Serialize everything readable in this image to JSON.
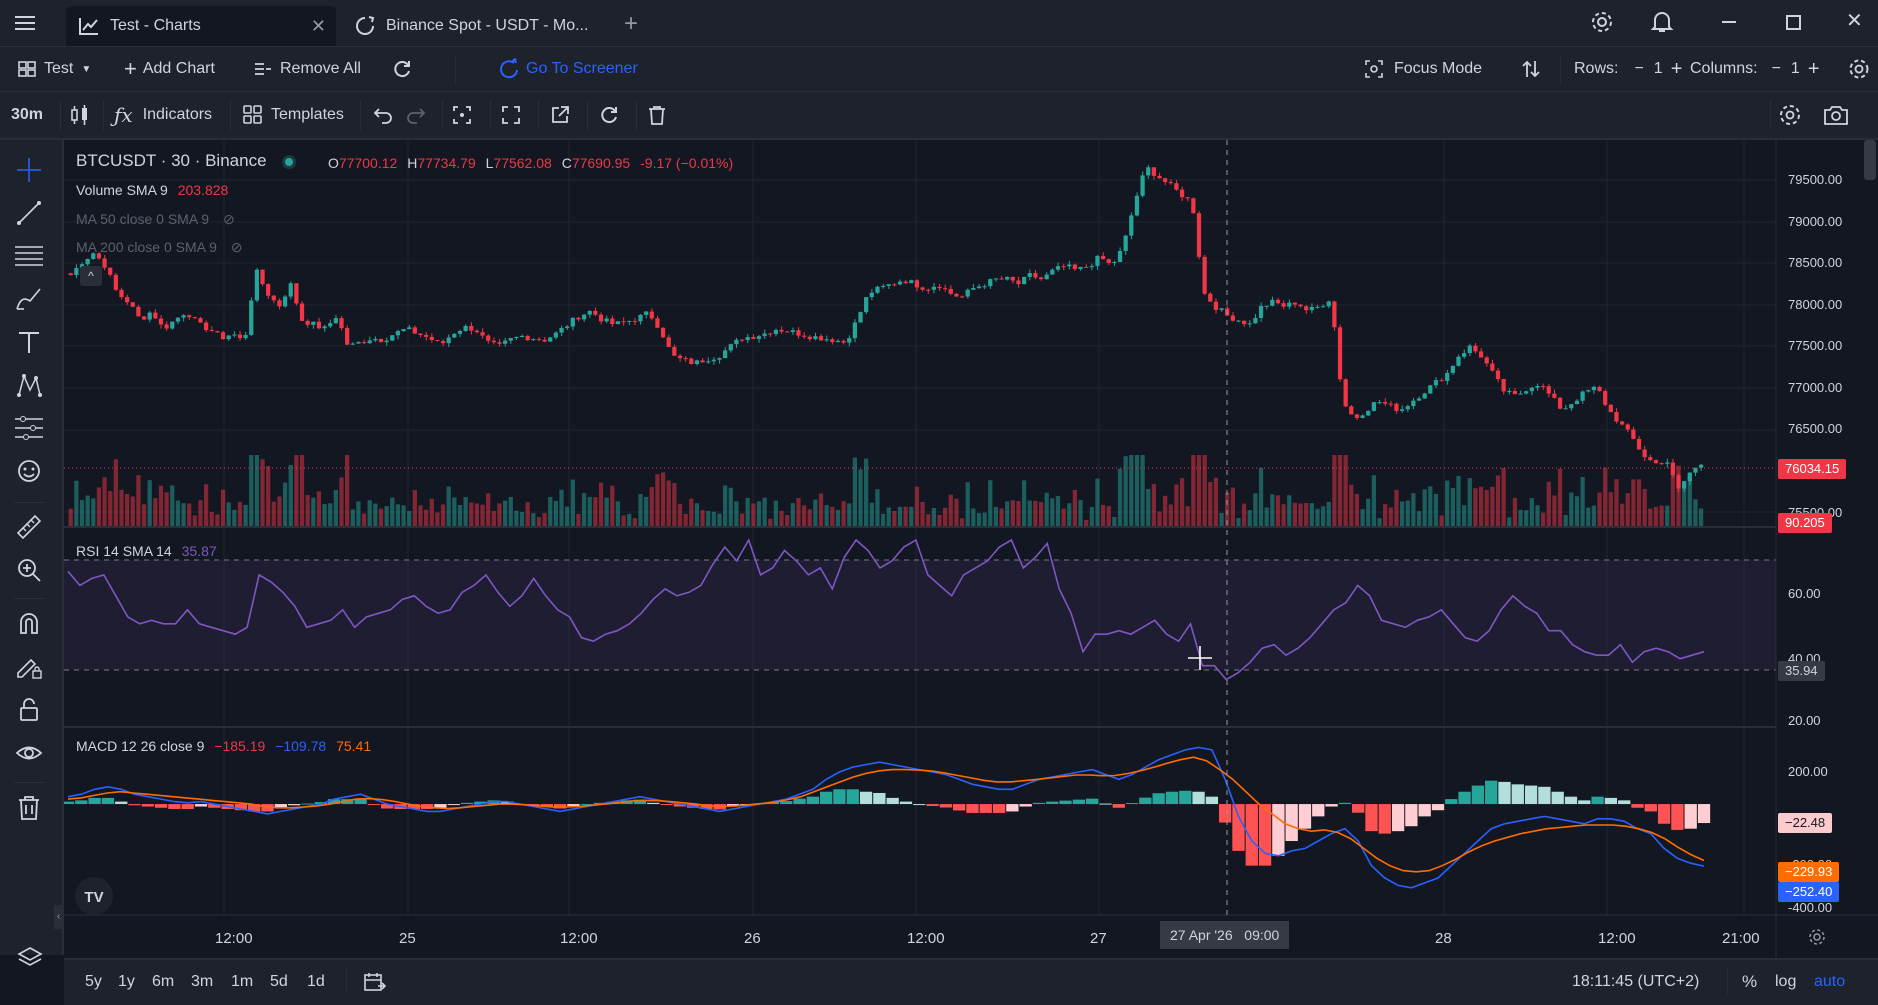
{
  "window": {
    "tabs": [
      {
        "label": "Test - Charts",
        "active": true
      },
      {
        "label": "Binance Spot - USDT - Mo...",
        "active": false
      }
    ]
  },
  "appbar": {
    "layout_label": "Test",
    "add_chart": "Add Chart",
    "remove_all": "Remove All",
    "go_to_screener": "Go To Screener",
    "focus_mode": "Focus Mode",
    "rows_label": "Rows:",
    "rows_value": "1",
    "columns_label": "Columns:",
    "columns_value": "1"
  },
  "chart_toolbar": {
    "interval": "30m",
    "indicators": "Indicators",
    "templates": "Templates"
  },
  "legend": {
    "symbol": "BTCUSDT · 30 · Binance",
    "o_label": "O",
    "o_value": "77700.12",
    "h_label": "H",
    "h_value": "77734.79",
    "l_label": "L",
    "l_value": "77562.08",
    "c_label": "C",
    "c_value": "77690.95",
    "change": "-9.17 (−0.01%)",
    "volume_label": "Volume SMA 9",
    "volume_value": "203.828",
    "ma50_label": "MA 50 close 0 SMA 9",
    "ma200_label": "MA 200 close 0 SMA 9",
    "rsi_label": "RSI 14 SMA 14",
    "rsi_value": "35.87",
    "macd_label": "MACD 12 26 close 9",
    "macd_v1": "−185.19",
    "macd_v2": "−109.78",
    "macd_v3": "75.41"
  },
  "price_axis": {
    "ticks": [
      "79500.00",
      "79000.00",
      "78500.00",
      "78000.00",
      "77500.00",
      "77000.00",
      "76500.00",
      "75500.00"
    ],
    "last_price": "76034.15",
    "volume_badge": "90.205",
    "rsi_ticks": [
      "60.00",
      "40.00",
      "20.00"
    ],
    "rsi_badge": "35.94",
    "macd_ticks": [
      "200.00",
      "-200.00",
      "-400.00"
    ],
    "macd_hist_badge": "−22.48",
    "macd_signal_badge": "−229.93",
    "macd_line_badge": "−252.40"
  },
  "time_axis": {
    "ticks": [
      "12:00",
      "25",
      "12:00",
      "26",
      "12:00",
      "27",
      "28",
      "12:00",
      "21:00"
    ],
    "crosshair_label": "27 Apr '26   09:00"
  },
  "bottom": {
    "ranges": [
      "5y",
      "1y",
      "6m",
      "3m",
      "1m",
      "5d",
      "1d"
    ],
    "clock": "18:11:45 (UTC+2)",
    "pct": "%",
    "log": "log",
    "auto": "auto"
  },
  "colors": {
    "up": "#26a69a",
    "down": "#f23645",
    "rsi": "#7e57c2",
    "macd": "#2962ff",
    "signal": "#ff6d00",
    "accent": "#2962ff"
  },
  "chart_data": {
    "type": "candlestick",
    "symbol": "BTCUSDT",
    "interval": "30",
    "exchange": "Binance",
    "ylim": [
      75400,
      79700
    ],
    "close_path": [
      78200,
      78350,
      78450,
      78300,
      78000,
      77900,
      77700,
      77800,
      77600,
      77700,
      77800,
      77650,
      77600,
      77500,
      77550,
      77450,
      78250,
      78000,
      77850,
      78100,
      77700,
      77650,
      77600,
      77750,
      77400,
      77450,
      77500,
      77480,
      77550,
      77600,
      77550,
      77500,
      77420,
      77550,
      77620,
      77600,
      77450,
      77400,
      77480,
      77520,
      77500,
      77480,
      77550,
      77650,
      77750,
      77800,
      77700,
      77650,
      77680,
      77720,
      77780,
      77600,
      77300,
      77250,
      77220,
      77270,
      77300,
      77400,
      77500,
      77520,
      77550,
      77600,
      77580,
      77550,
      77520,
      77500,
      77480,
      77450,
      77700,
      78000,
      78050,
      78100,
      78150,
      78100,
      78050,
      78100,
      78000,
      77950,
      78050,
      78100,
      78150,
      78150,
      78100,
      78200,
      78150,
      78250,
      78300,
      78250,
      78300,
      78400,
      78300,
      78500,
      79000,
      79400,
      79300,
      79200,
      79100,
      79000,
      78000,
      77850,
      77750,
      77700,
      77650,
      77850,
      77900,
      77850,
      77900,
      77800,
      77850,
      77950,
      76800,
      76600,
      76700,
      76800,
      76750,
      76700,
      76800,
      76900,
      77000,
      77100,
      77300,
      77400,
      77300,
      77100,
      76900,
      76850,
      76950,
      77000,
      76850,
      76700,
      76800,
      76900,
      76950,
      76700,
      76550,
      76400,
      76200,
      76100,
      76150,
      75800,
      76000,
      76100
    ],
    "rsi_ylim": [
      15,
      70
    ],
    "rsi_path": [
      59,
      55,
      57,
      58,
      52,
      46,
      44,
      45,
      44,
      44,
      48,
      44,
      43,
      42,
      41,
      43,
      58,
      56,
      53,
      49,
      43,
      44,
      45,
      48,
      43,
      46,
      47,
      48,
      51,
      52,
      49,
      47,
      48,
      53,
      55,
      58,
      53,
      49,
      52,
      57,
      52,
      48,
      46,
      40,
      39,
      41,
      42,
      44,
      47,
      51,
      54,
      52,
      53,
      55,
      61,
      66,
      62,
      68,
      58,
      60,
      65,
      62,
      58,
      60,
      54,
      63,
      68,
      65,
      60,
      62,
      66,
      68,
      58,
      55,
      52,
      58,
      60,
      62,
      66,
      68,
      60,
      63,
      67,
      54,
      47,
      36,
      41,
      41,
      42,
      41,
      43,
      45,
      41,
      39,
      44,
      32,
      32,
      28,
      30,
      33,
      37,
      38,
      35,
      37,
      40,
      44,
      48,
      50,
      55,
      52,
      45,
      44,
      43,
      45,
      46,
      48,
      44,
      40,
      39,
      42,
      48,
      52,
      49,
      47,
      42,
      42,
      38,
      36,
      35,
      35,
      38,
      33,
      36,
      37,
      36,
      34,
      35,
      36
    ],
    "macd_ylim": [
      -430,
      260
    ],
    "macd_line_path": [
      30,
      40,
      60,
      70,
      60,
      40,
      30,
      20,
      10,
      5,
      10,
      0,
      -10,
      -20,
      -30,
      -40,
      -30,
      -20,
      -10,
      0,
      20,
      30,
      40,
      20,
      0,
      -10,
      -20,
      -30,
      -30,
      -20,
      -10,
      0,
      10,
      10,
      0,
      -10,
      -20,
      -30,
      -20,
      -10,
      0,
      10,
      20,
      30,
      20,
      10,
      0,
      -10,
      -20,
      -30,
      -20,
      -10,
      0,
      10,
      20,
      40,
      60,
      100,
      130,
      150,
      160,
      170,
      160,
      150,
      140,
      130,
      120,
      100,
      80,
      70,
      60,
      60,
      80,
      100,
      110,
      120,
      130,
      140,
      120,
      100,
      120,
      150,
      180,
      200,
      220,
      230,
      220,
      100,
      -50,
      -150,
      -200,
      -210,
      -190,
      -180,
      -150,
      -120,
      -100,
      -150,
      -250,
      -300,
      -330,
      -340,
      -320,
      -300,
      -250,
      -200,
      -150,
      -100,
      -80,
      -70,
      -60,
      -50,
      -60,
      -70,
      -80,
      -60,
      -60,
      -70,
      -100,
      -120,
      -180,
      -220,
      -240,
      -252
    ],
    "macd_signal_path": [
      20,
      25,
      35,
      45,
      50,
      45,
      40,
      35,
      30,
      25,
      20,
      15,
      10,
      5,
      0,
      -10,
      -15,
      -15,
      -12,
      -8,
      0,
      10,
      20,
      22,
      18,
      10,
      0,
      -10,
      -15,
      -18,
      -15,
      -10,
      -5,
      0,
      0,
      -3,
      -8,
      -12,
      -12,
      -10,
      -5,
      0,
      5,
      12,
      15,
      14,
      10,
      5,
      0,
      -8,
      -10,
      -8,
      -3,
      2,
      8,
      18,
      30,
      50,
      70,
      90,
      110,
      125,
      135,
      140,
      140,
      138,
      134,
      126,
      116,
      106,
      96,
      90,
      90,
      95,
      100,
      106,
      112,
      118,
      118,
      115,
      116,
      124,
      136,
      150,
      166,
      180,
      190,
      175,
      140,
      100,
      50,
      0,
      -40,
      -80,
      -100,
      -110,
      -105,
      -115,
      -140,
      -180,
      -220,
      -250,
      -270,
      -275,
      -270,
      -250,
      -225,
      -195,
      -170,
      -150,
      -135,
      -120,
      -110,
      -100,
      -95,
      -90,
      -85,
      -85,
      -85,
      -90,
      -100,
      -115,
      -140,
      -175,
      -205,
      -229
    ],
    "crosshair_time": "27 Apr '26 09:00"
  }
}
